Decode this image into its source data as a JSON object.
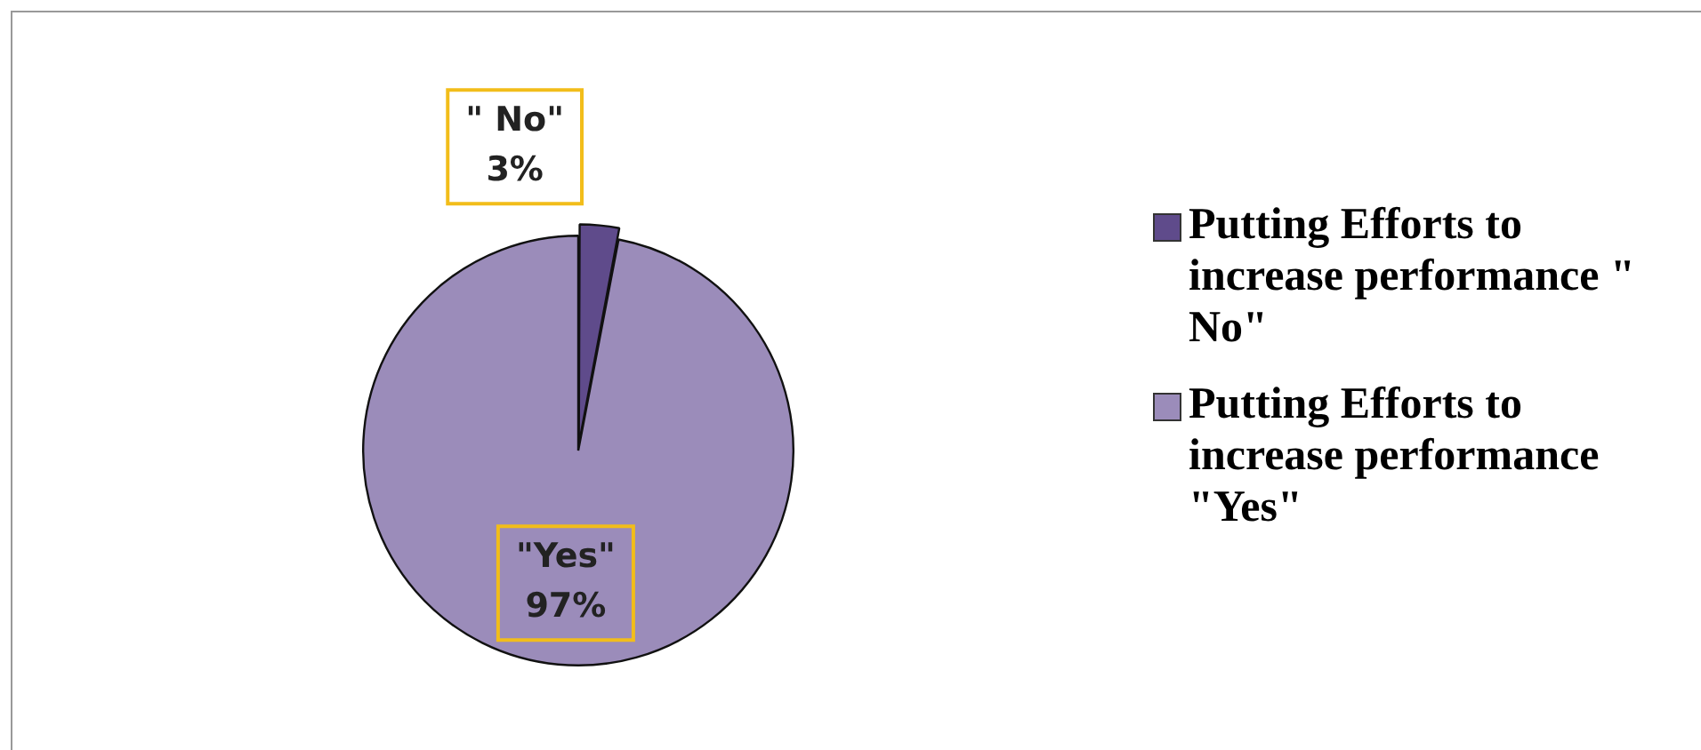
{
  "chart_data": {
    "type": "pie",
    "categories": [
      "Putting Efforts to increase performance \" No\"",
      "Putting Efforts to increase performance \"Yes\""
    ],
    "values": [
      3,
      97
    ],
    "colors": [
      "#5f4b8b",
      "#9b8cba"
    ],
    "value_labels": [
      "\" No\"\n3%",
      "\"Yes\"\n97%"
    ],
    "legend": "right"
  }
}
